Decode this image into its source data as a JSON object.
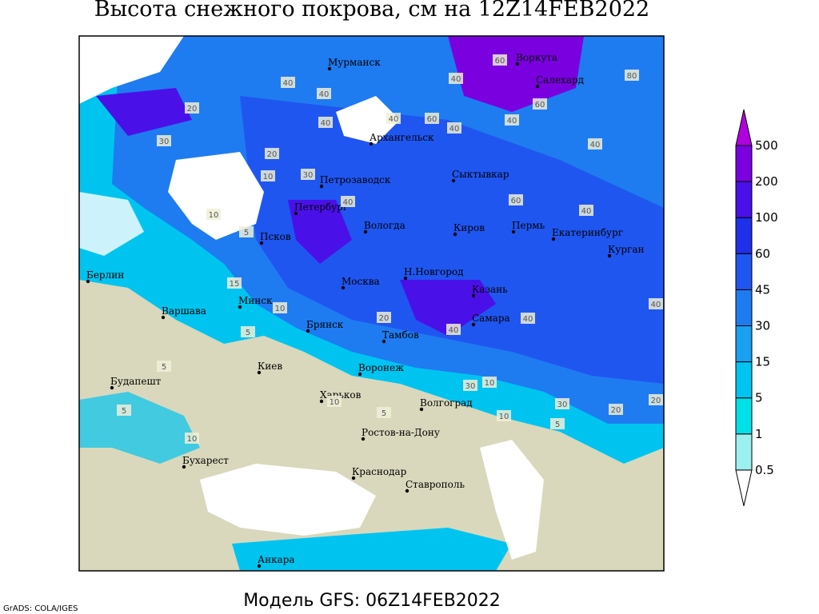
{
  "title": "Высота снежного покрова, см на 12Z14FEB2022",
  "footer": "Модель GFS: 06Z14FEB2022",
  "credit": "GrADS: COLA/IGES",
  "legend": {
    "levels": [
      0.5,
      1,
      5,
      15,
      30,
      45,
      60,
      100,
      200,
      500
    ],
    "colors": [
      "#ffffff",
      "#9cf0f0",
      "#00e0e8",
      "#00c4f0",
      "#1aa0f0",
      "#1e7cf0",
      "#2056f0",
      "#1e30e8",
      "#4a10e8",
      "#7a00e0",
      "#b000e0"
    ]
  },
  "cities": [
    "Мурманск",
    "Воркута",
    "Салехард",
    "Архангельск",
    "Петрозаводск",
    "Сыктывкар",
    "Петербург",
    "Вологда",
    "Киров",
    "Пермь",
    "Екатеринбург",
    "Курган",
    "Псков",
    "Берлин",
    "Н.Новгород",
    "Минск",
    "Москва",
    "Казань",
    "Варшава",
    "Брянск",
    "Самара",
    "Тамбов",
    "Воронеж",
    "Киев",
    "Будапешт",
    "Харьков",
    "Волгоград",
    "Ростов-на-Дону",
    "Бухарест",
    "Краснодар",
    "Ставрополь",
    "Анкара"
  ],
  "contour_labels": [
    40,
    60,
    80,
    60,
    40,
    40,
    40,
    20,
    30,
    20,
    10,
    40,
    60,
    40,
    40,
    40,
    30,
    10,
    15,
    5,
    10,
    5,
    10,
    20,
    30,
    40,
    40,
    40,
    40,
    20,
    30,
    10,
    5,
    20,
    5,
    10,
    5,
    10,
    5,
    40,
    60
  ]
}
